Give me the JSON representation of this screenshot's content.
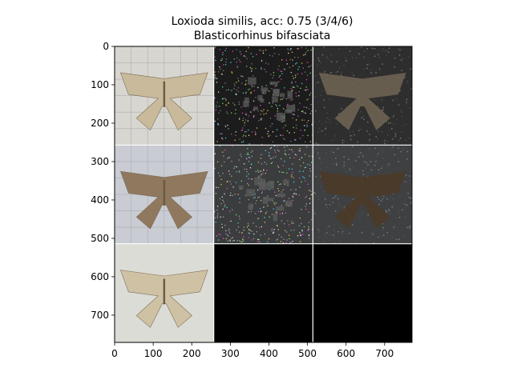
{
  "title": {
    "line1": "Loxioda similis, acc: 0.75 (3/4/6)",
    "line2": "Blasticorhinus bifasciata"
  },
  "chart_data": {
    "type": "image-grid",
    "grid": {
      "rows": 3,
      "cols": 3
    },
    "xlim": [
      0,
      771
    ],
    "ylim": [
      771,
      0
    ],
    "x_ticks": [
      0,
      100,
      200,
      300,
      400,
      500,
      600,
      700
    ],
    "y_ticks": [
      0,
      100,
      200,
      300,
      400,
      500,
      600,
      700
    ],
    "separator_color": "#ffffff",
    "cells": [
      {
        "row": 0,
        "col": 0,
        "kind": "moth-photo",
        "bg": "#d8d6d0",
        "moth": "#c9b99a",
        "grid_lines": true
      },
      {
        "row": 0,
        "col": 1,
        "kind": "noise-map",
        "bg": "#1c1c1c",
        "noise": "#8a8a8a"
      },
      {
        "row": 0,
        "col": 2,
        "kind": "masked-photo",
        "bg": "#2e2e2e",
        "moth": "#6e6352"
      },
      {
        "row": 1,
        "col": 0,
        "kind": "moth-photo",
        "bg": "#c9ccd2",
        "moth": "#8c7458",
        "grid_lines": true
      },
      {
        "row": 1,
        "col": 1,
        "kind": "noise-map",
        "bg": "#3a3c3e",
        "noise": "#b0b0b0"
      },
      {
        "row": 1,
        "col": 2,
        "kind": "masked-photo",
        "bg": "#3e4042",
        "moth": "#4a3a28"
      },
      {
        "row": 2,
        "col": 0,
        "kind": "moth-photo",
        "bg": "#dcdcd6",
        "moth": "#cfc0a2",
        "grid_lines": false
      },
      {
        "row": 2,
        "col": 1,
        "kind": "blank",
        "bg": "#000000"
      },
      {
        "row": 2,
        "col": 2,
        "kind": "blank",
        "bg": "#000000"
      }
    ]
  }
}
